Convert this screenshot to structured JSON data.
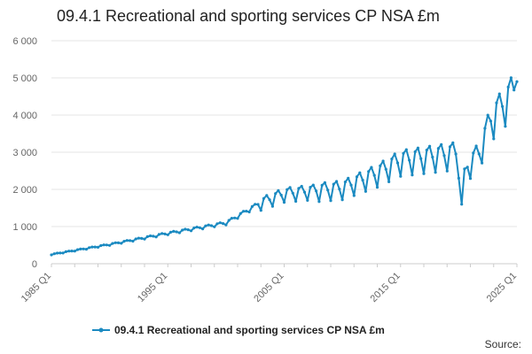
{
  "chart_data": {
    "type": "line",
    "title": "09.4.1 Recreational and sporting services CP NSA £m",
    "xlabel": "",
    "ylabel": "",
    "ylim": [
      0,
      6000
    ],
    "yticks": [
      0,
      1000,
      2000,
      3000,
      4000,
      5000,
      6000
    ],
    "ytick_labels": [
      "0",
      "1 000",
      "2 000",
      "3 000",
      "4 000",
      "5 000",
      "6 000"
    ],
    "xlim": [
      "1985 Q1",
      "2025 Q1"
    ],
    "xtick_labels": [
      "1985 Q1",
      "1995 Q1",
      "2005 Q1",
      "2015 Q1",
      "2025 Q1"
    ],
    "grid": "horizontal",
    "legend": "bottom-center",
    "series": [
      {
        "name": "09.4.1 Recreational and sporting services CP NSA £m",
        "color": "#1b8ac1",
        "anchors": [
          {
            "x": "1985 Q1",
            "y": 250
          },
          {
            "x": "1990 Q1",
            "y": 520
          },
          {
            "x": "1995 Q1",
            "y": 820
          },
          {
            "x": "2000 Q1",
            "y": 1100
          },
          {
            "x": "2003 Q1",
            "y": 1650
          },
          {
            "x": "2005 Q1",
            "y": 1900
          },
          {
            "x": "2010 Q1",
            "y": 2050
          },
          {
            "x": "2013 Q1",
            "y": 2450
          },
          {
            "x": "2015 Q1",
            "y": 2800
          },
          {
            "x": "2019 Q4",
            "y": 3000
          },
          {
            "x": "2020 Q2",
            "y": 1600
          },
          {
            "x": "2020 Q3",
            "y": 2550
          },
          {
            "x": "2021 Q4",
            "y": 3000
          },
          {
            "x": "2022 Q4",
            "y": 3900
          },
          {
            "x": "2024 Q3",
            "y": 4600
          },
          {
            "x": "2025 Q1",
            "y": 4900
          }
        ]
      }
    ]
  },
  "legend_label": "09.4.1 Recreational and sporting services CP NSA £m",
  "source_label": "Source:"
}
